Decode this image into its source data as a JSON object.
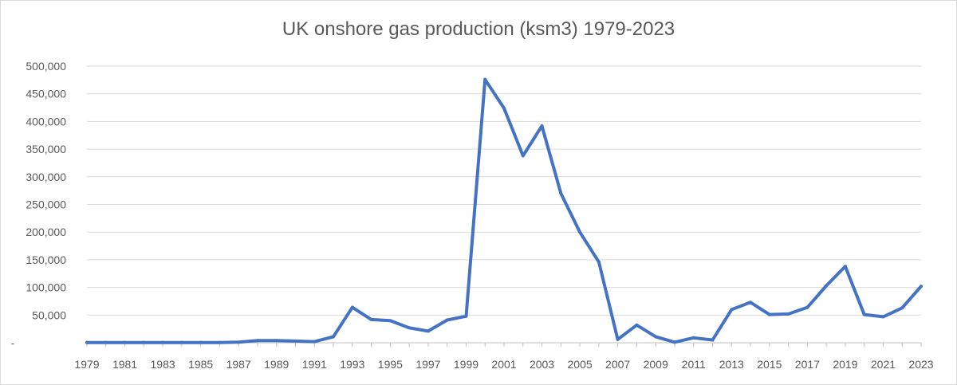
{
  "chart_data": {
    "type": "line",
    "title": "UK onshore gas production (ksm3) 1979-2023",
    "xlabel": "",
    "ylabel": "",
    "ylim": [
      0,
      500000
    ],
    "yticks": [
      0,
      50000,
      100000,
      150000,
      200000,
      250000,
      300000,
      350000,
      400000,
      450000,
      500000
    ],
    "ytick_labels": [
      "-",
      "50,000",
      "100,000",
      "150,000",
      "200,000",
      "250,000",
      "300,000",
      "350,000",
      "400,000",
      "450,000",
      "500,000"
    ],
    "xtick_labels": [
      "1979",
      "1981",
      "1983",
      "1985",
      "1987",
      "1989",
      "1991",
      "1993",
      "1995",
      "1997",
      "1999",
      "2001",
      "2003",
      "2005",
      "2007",
      "2009",
      "2011",
      "2013",
      "2015",
      "2017",
      "2019",
      "2021",
      "2023"
    ],
    "grid": true,
    "legend": "none",
    "series": [
      {
        "color": "#4472c4",
        "x": [
          1979,
          1980,
          1981,
          1982,
          1983,
          1984,
          1985,
          1986,
          1987,
          1988,
          1989,
          1990,
          1991,
          1992,
          1993,
          1994,
          1995,
          1996,
          1997,
          1998,
          1999,
          2000,
          2001,
          2002,
          2003,
          2004,
          2005,
          2006,
          2007,
          2008,
          2009,
          2010,
          2011,
          2012,
          2013,
          2014,
          2015,
          2016,
          2017,
          2018,
          2019,
          2020,
          2021,
          2022,
          2023
        ],
        "values": [
          500,
          500,
          500,
          500,
          500,
          500,
          500,
          500,
          1000,
          4000,
          4000,
          3000,
          2000,
          11000,
          64000,
          42000,
          40000,
          27000,
          21000,
          41000,
          48000,
          476000,
          424000,
          338000,
          392000,
          270000,
          200000,
          146000,
          6000,
          32000,
          11000,
          1000,
          9000,
          5000,
          60000,
          73000,
          51000,
          52000,
          64000,
          103000,
          138000,
          51000,
          47000,
          63000,
          102000
        ]
      }
    ]
  }
}
